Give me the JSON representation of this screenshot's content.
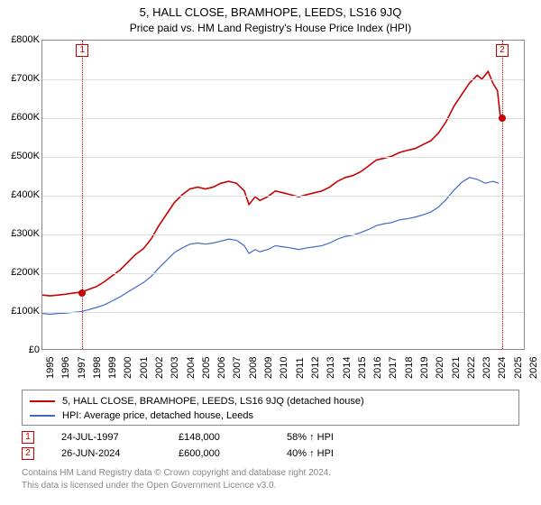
{
  "title": "5, HALL CLOSE, BRAMHOPE, LEEDS, LS16 9JQ",
  "subtitle": "Price paid vs. HM Land Registry's House Price Index (HPI)",
  "chart": {
    "type": "line",
    "background_color": "#ffffff",
    "grid_color": "#dddddd",
    "border_color": "#888888",
    "ylim": [
      0,
      800000
    ],
    "yticks": [
      0,
      100000,
      200000,
      300000,
      400000,
      500000,
      600000,
      700000,
      800000
    ],
    "ytick_labels": [
      "£0",
      "£100K",
      "£200K",
      "£300K",
      "£400K",
      "£500K",
      "£600K",
      "£700K",
      "£800K"
    ],
    "xlim": [
      1995,
      2026
    ],
    "xticks": [
      1995,
      1996,
      1997,
      1998,
      1999,
      2000,
      2001,
      2002,
      2003,
      2004,
      2005,
      2006,
      2007,
      2008,
      2009,
      2010,
      2011,
      2012,
      2013,
      2014,
      2015,
      2016,
      2017,
      2018,
      2019,
      2020,
      2021,
      2022,
      2023,
      2024,
      2025,
      2026
    ],
    "label_fontsize": 11,
    "title_fontsize": 13
  },
  "series": [
    {
      "name": "5, HALL CLOSE, BRAMHOPE, LEEDS, LS16 9JQ (detached house)",
      "color": "#c90000",
      "line_width": 1.6,
      "data": [
        [
          1995,
          140000
        ],
        [
          1995.5,
          138000
        ],
        [
          1996,
          140000
        ],
        [
          1996.5,
          142000
        ],
        [
          1997,
          145000
        ],
        [
          1997.56,
          148000
        ],
        [
          1998,
          155000
        ],
        [
          1998.5,
          162000
        ],
        [
          1999,
          175000
        ],
        [
          1999.5,
          190000
        ],
        [
          2000,
          205000
        ],
        [
          2000.5,
          225000
        ],
        [
          2001,
          245000
        ],
        [
          2001.5,
          260000
        ],
        [
          2002,
          285000
        ],
        [
          2002.5,
          320000
        ],
        [
          2003,
          350000
        ],
        [
          2003.5,
          380000
        ],
        [
          2004,
          400000
        ],
        [
          2004.5,
          415000
        ],
        [
          2005,
          420000
        ],
        [
          2005.5,
          415000
        ],
        [
          2006,
          420000
        ],
        [
          2006.5,
          430000
        ],
        [
          2007,
          435000
        ],
        [
          2007.5,
          430000
        ],
        [
          2008,
          410000
        ],
        [
          2008.3,
          375000
        ],
        [
          2008.7,
          395000
        ],
        [
          2009,
          385000
        ],
        [
          2009.5,
          395000
        ],
        [
          2010,
          410000
        ],
        [
          2010.5,
          405000
        ],
        [
          2011,
          400000
        ],
        [
          2011.5,
          395000
        ],
        [
          2012,
          400000
        ],
        [
          2012.5,
          405000
        ],
        [
          2013,
          410000
        ],
        [
          2013.5,
          420000
        ],
        [
          2014,
          435000
        ],
        [
          2014.5,
          445000
        ],
        [
          2015,
          450000
        ],
        [
          2015.5,
          460000
        ],
        [
          2016,
          475000
        ],
        [
          2016.5,
          490000
        ],
        [
          2017,
          495000
        ],
        [
          2017.5,
          500000
        ],
        [
          2018,
          510000
        ],
        [
          2018.5,
          515000
        ],
        [
          2019,
          520000
        ],
        [
          2019.5,
          530000
        ],
        [
          2020,
          540000
        ],
        [
          2020.5,
          560000
        ],
        [
          2021,
          590000
        ],
        [
          2021.5,
          630000
        ],
        [
          2022,
          660000
        ],
        [
          2022.5,
          690000
        ],
        [
          2023,
          710000
        ],
        [
          2023.3,
          700000
        ],
        [
          2023.7,
          720000
        ],
        [
          2024,
          690000
        ],
        [
          2024.3,
          670000
        ],
        [
          2024.49,
          600000
        ]
      ]
    },
    {
      "name": "HPI: Average price, detached house, Leeds",
      "color": "#4169c8",
      "line_width": 1.2,
      "data": [
        [
          1995,
          92000
        ],
        [
          1995.5,
          90000
        ],
        [
          1996,
          92000
        ],
        [
          1996.5,
          93000
        ],
        [
          1997,
          95000
        ],
        [
          1997.5,
          97000
        ],
        [
          1998,
          102000
        ],
        [
          1998.5,
          108000
        ],
        [
          1999,
          115000
        ],
        [
          1999.5,
          125000
        ],
        [
          2000,
          135000
        ],
        [
          2000.5,
          148000
        ],
        [
          2001,
          160000
        ],
        [
          2001.5,
          172000
        ],
        [
          2002,
          188000
        ],
        [
          2002.5,
          210000
        ],
        [
          2003,
          230000
        ],
        [
          2003.5,
          250000
        ],
        [
          2004,
          262000
        ],
        [
          2004.5,
          272000
        ],
        [
          2005,
          275000
        ],
        [
          2005.5,
          272000
        ],
        [
          2006,
          275000
        ],
        [
          2006.5,
          280000
        ],
        [
          2007,
          285000
        ],
        [
          2007.5,
          282000
        ],
        [
          2008,
          268000
        ],
        [
          2008.3,
          248000
        ],
        [
          2008.7,
          258000
        ],
        [
          2009,
          252000
        ],
        [
          2009.5,
          258000
        ],
        [
          2010,
          268000
        ],
        [
          2010.5,
          265000
        ],
        [
          2011,
          262000
        ],
        [
          2011.5,
          258000
        ],
        [
          2012,
          262000
        ],
        [
          2012.5,
          265000
        ],
        [
          2013,
          268000
        ],
        [
          2013.5,
          275000
        ],
        [
          2014,
          285000
        ],
        [
          2014.5,
          292000
        ],
        [
          2015,
          295000
        ],
        [
          2015.5,
          302000
        ],
        [
          2016,
          310000
        ],
        [
          2016.5,
          320000
        ],
        [
          2017,
          325000
        ],
        [
          2017.5,
          328000
        ],
        [
          2018,
          335000
        ],
        [
          2018.5,
          338000
        ],
        [
          2019,
          342000
        ],
        [
          2019.5,
          348000
        ],
        [
          2020,
          355000
        ],
        [
          2020.5,
          368000
        ],
        [
          2021,
          388000
        ],
        [
          2021.5,
          412000
        ],
        [
          2022,
          432000
        ],
        [
          2022.5,
          445000
        ],
        [
          2023,
          440000
        ],
        [
          2023.5,
          430000
        ],
        [
          2024,
          435000
        ],
        [
          2024.4,
          430000
        ]
      ]
    }
  ],
  "markers": [
    {
      "num": "1",
      "year": 1997.56,
      "value": 148000,
      "date": "24-JUL-1997",
      "price": "£148,000",
      "hpi": "58% ↑ HPI",
      "color": "#c90000"
    },
    {
      "num": "2",
      "year": 2024.49,
      "value": 600000,
      "date": "26-JUN-2024",
      "price": "£600,000",
      "hpi": "40% ↑ HPI",
      "color": "#c90000"
    }
  ],
  "legend": {
    "items": [
      {
        "label": "5, HALL CLOSE, BRAMHOPE, LEEDS, LS16 9JQ (detached house)",
        "color": "#c90000"
      },
      {
        "label": "HPI: Average price, detached house, Leeds",
        "color": "#4169c8"
      }
    ]
  },
  "footer": {
    "line1": "Contains HM Land Registry data © Crown copyright and database right 2024.",
    "line2": "This data is licensed under the Open Government Licence v3.0."
  }
}
